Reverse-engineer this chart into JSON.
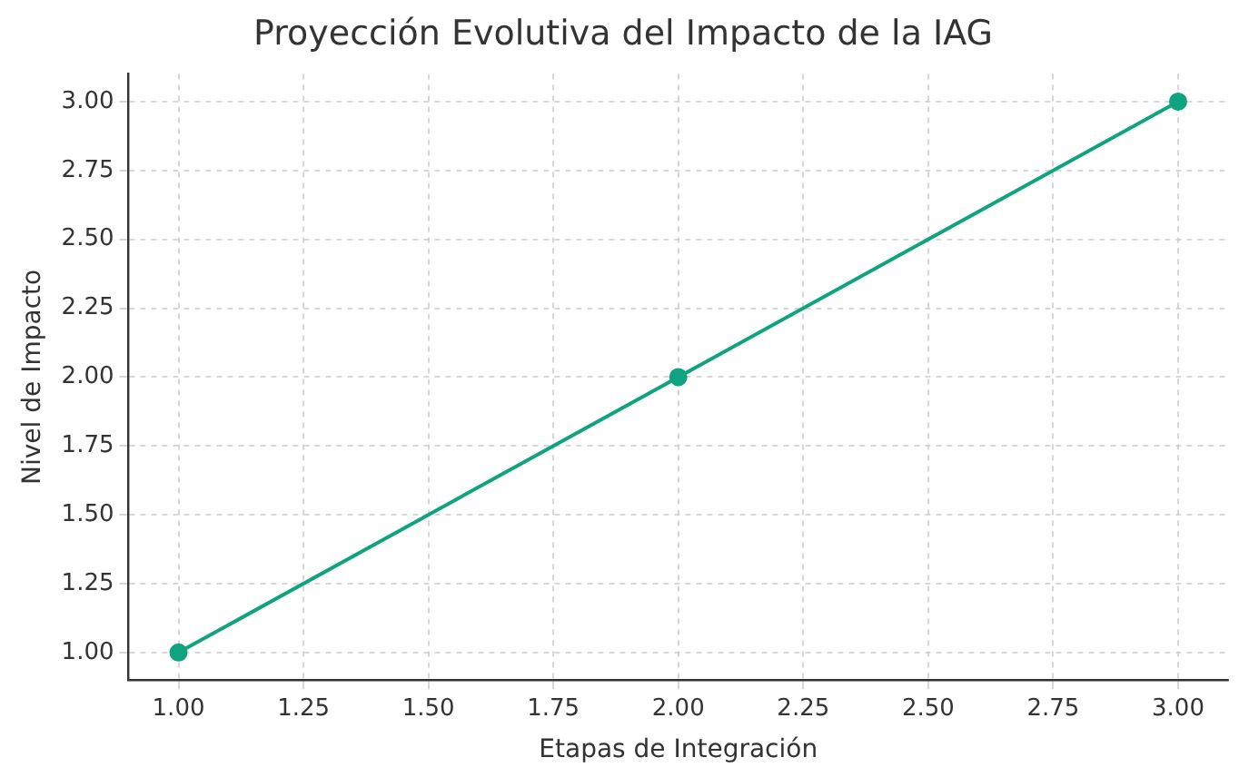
{
  "chart_data": {
    "type": "line",
    "title": "Proyección Evolutiva del Impacto de la IAG",
    "xlabel": "Etapas de Integración",
    "ylabel": "Nivel de Impacto",
    "x": [
      1,
      2,
      3
    ],
    "series": [
      {
        "color": "#10a37f",
        "values": [
          1,
          2,
          3
        ]
      }
    ],
    "xlim": [
      0.9,
      3.1
    ],
    "ylim": [
      0.9,
      3.1
    ],
    "xticks": [
      {
        "value": 1,
        "label": "1.00"
      },
      {
        "value": 1.25,
        "label": "1.25"
      },
      {
        "value": 1.5,
        "label": "1.50"
      },
      {
        "value": 1.75,
        "label": "1.75"
      },
      {
        "value": 2,
        "label": "2.00"
      },
      {
        "value": 2.25,
        "label": "2.25"
      },
      {
        "value": 2.5,
        "label": "2.50"
      },
      {
        "value": 2.75,
        "label": "2.75"
      },
      {
        "value": 3,
        "label": "3.00"
      }
    ],
    "yticks": [
      {
        "value": 1,
        "label": "1.00"
      },
      {
        "value": 1.25,
        "label": "1.25"
      },
      {
        "value": 1.5,
        "label": "1.50"
      },
      {
        "value": 1.75,
        "label": "1.75"
      },
      {
        "value": 2,
        "label": "2.00"
      },
      {
        "value": 2.25,
        "label": "2.25"
      },
      {
        "value": 2.5,
        "label": "2.50"
      },
      {
        "value": 2.75,
        "label": "2.75"
      },
      {
        "value": 3,
        "label": "3.00"
      }
    ],
    "grid": true,
    "legend": false,
    "marker": "circle",
    "line_style": "solid"
  }
}
